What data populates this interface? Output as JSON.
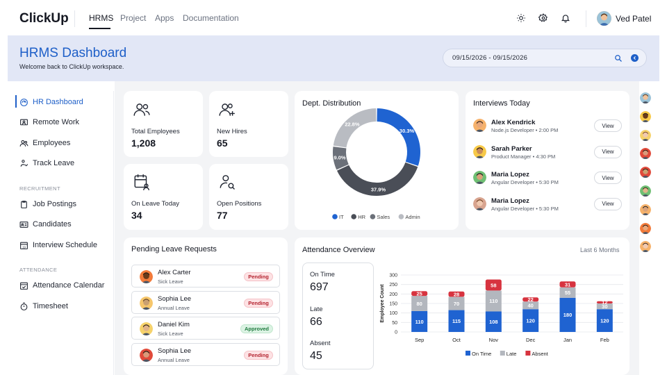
{
  "app": {
    "logo": "ClickUp",
    "user_name": "Ved Patel"
  },
  "topnav": {
    "items": [
      {
        "label": "HRMS",
        "active": true
      },
      {
        "label": "Project",
        "active": false
      },
      {
        "label": "Apps",
        "active": false
      },
      {
        "label": "Documentation",
        "active": false
      }
    ]
  },
  "header_icons": [
    "sun-icon",
    "gear-icon",
    "bell-icon"
  ],
  "banner": {
    "title": "HRMS Dashboard",
    "subtitle": "Welcome back to ClickUp workspace.",
    "date_range": "09/15/2026 - 09/15/2026"
  },
  "sidebar": {
    "items": [
      {
        "label": "HR Dashboard",
        "icon": "dashboard-icon",
        "active": true
      },
      {
        "label": "Remote Work",
        "icon": "monitor-user-icon"
      },
      {
        "label": "Employees",
        "icon": "users-icon"
      },
      {
        "label": "Track Leave",
        "icon": "user-walk-icon"
      }
    ],
    "recruitment_heading": "RECRUITMENT",
    "recruitment_items": [
      {
        "label": "Job Postings",
        "icon": "clipboard-icon"
      },
      {
        "label": "Candidates",
        "icon": "id-card-icon"
      },
      {
        "label": "Interview Schedule",
        "icon": "calendar-19-icon"
      }
    ],
    "attendance_heading": "ATTENDANCE",
    "attendance_items": [
      {
        "label": "Attendance Calendar",
        "icon": "calendar-check-icon"
      },
      {
        "label": "Timesheet",
        "icon": "stopwatch-icon"
      }
    ]
  },
  "stats": [
    {
      "label": "Total Employees",
      "value": "1,208",
      "icon": "users-icon"
    },
    {
      "label": "New Hires",
      "value": "65",
      "icon": "user-plus-icon"
    },
    {
      "label": "On Leave Today",
      "value": "34",
      "icon": "calendar-user-icon"
    },
    {
      "label": "Open Positions",
      "value": "77",
      "icon": "user-search-icon"
    }
  ],
  "dept": {
    "title": "Dept. Distribution"
  },
  "interviews": {
    "title": "Interviews Today",
    "button_label": "View",
    "items": [
      {
        "name": "Alex Kendrick",
        "role": "Node.js Developer",
        "time": "2:00 PM"
      },
      {
        "name": "Sarah Parker",
        "role": "Product Manager",
        "time": "4:30 PM"
      },
      {
        "name": "Maria Lopez",
        "role": "Angular Developer",
        "time": "5:30 PM"
      },
      {
        "name": "Maria Lopez",
        "role": "Angular Developer",
        "time": "5:30 PM"
      }
    ]
  },
  "leave": {
    "title": "Pending Leave Requests",
    "items": [
      {
        "name": "Alex Carter",
        "type": "Sick Leave",
        "status": "Pending"
      },
      {
        "name": "Sophia Lee",
        "type": "Annual Leave",
        "status": "Pending"
      },
      {
        "name": "Daniel Kim",
        "type": "Sick Leave",
        "status": "Approved"
      },
      {
        "name": "Sophia Lee",
        "type": "Annual Leave",
        "status": "Pending"
      }
    ]
  },
  "attendance": {
    "title": "Attendance Overview",
    "period": "Last 6 Months",
    "summary": [
      {
        "label": "On Time",
        "value": "697"
      },
      {
        "label": "Late",
        "value": "66"
      },
      {
        "label": "Absent",
        "value": "45"
      }
    ]
  },
  "chart_data": [
    {
      "type": "pie",
      "title": "Dept. Distribution",
      "categories": [
        "IT",
        "HR",
        "Sales",
        "Admin"
      ],
      "values": [
        30.3,
        37.9,
        9.0,
        22.8
      ],
      "data_labels": [
        "30.3%",
        "37.9%",
        "9.0%",
        "22.8%"
      ],
      "colors": [
        "#1f63d1",
        "#4a4e57",
        "#6b7079",
        "#b9bcc2"
      ],
      "legend": "bottom"
    },
    {
      "type": "bar",
      "stacked": true,
      "categories": [
        "Sep",
        "Oct",
        "Nov",
        "Dec",
        "Jan",
        "Feb"
      ],
      "series": [
        {
          "name": "On Time",
          "values": [
            110,
            115,
            108,
            120,
            180,
            120
          ],
          "color": "#1f63d1"
        },
        {
          "name": "Late",
          "values": [
            80,
            70,
            110,
            40,
            55,
            30
          ],
          "color": "#b3b7be"
        },
        {
          "name": "Absent",
          "values": [
            25,
            28,
            58,
            22,
            31,
            12
          ],
          "color": "#d7333f"
        }
      ],
      "ylabel": "Employee Count",
      "ylim": [
        0,
        300
      ],
      "yticks": [
        0,
        50,
        100,
        150,
        200,
        250,
        300
      ],
      "grid": true,
      "legend": "bottom"
    }
  ],
  "accent_color": "#1e5fc8"
}
